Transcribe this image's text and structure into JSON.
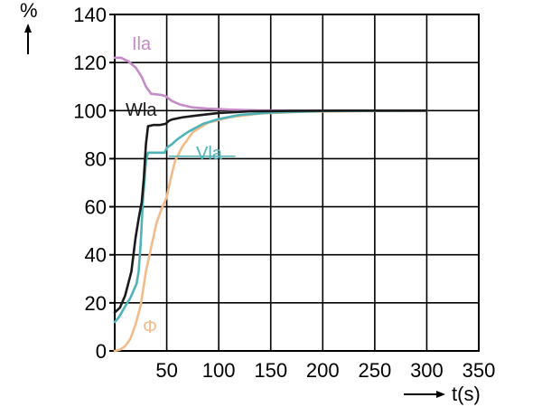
{
  "chart_data": {
    "type": "line",
    "xlabel": "t(s)",
    "ylabel": "%",
    "xlim": [
      0,
      350
    ],
    "ylim": [
      0,
      140
    ],
    "xticks": [
      50,
      100,
      150,
      200,
      250,
      300,
      350
    ],
    "yticks": [
      0,
      20,
      40,
      60,
      80,
      100,
      120,
      140
    ],
    "grid": true,
    "colors": {
      "Ila": "#c58ac7",
      "Wla": "#1a1a1a",
      "Vla": "#4fb3b8",
      "Φ": "#f2bb8a",
      "grid": "#000000"
    },
    "series": [
      {
        "name": "Ila",
        "points": [
          [
            0,
            122
          ],
          [
            6,
            122
          ],
          [
            13,
            120.5
          ],
          [
            20,
            118
          ],
          [
            26,
            114
          ],
          [
            30,
            110
          ],
          [
            35,
            107
          ],
          [
            45,
            106.5
          ],
          [
            49,
            106
          ],
          [
            55,
            104
          ],
          [
            63,
            102.5
          ],
          [
            75,
            101.3
          ],
          [
            90,
            100.8
          ],
          [
            110,
            100.4
          ],
          [
            140,
            100.1
          ],
          [
            180,
            100
          ],
          [
            300,
            100
          ]
        ]
      },
      {
        "name": "Wla",
        "points": [
          [
            0,
            16
          ],
          [
            5,
            18
          ],
          [
            10,
            23
          ],
          [
            13,
            28
          ],
          [
            16,
            33
          ],
          [
            18,
            40
          ],
          [
            20,
            47
          ],
          [
            23,
            55
          ],
          [
            26,
            62
          ],
          [
            28,
            72
          ],
          [
            30,
            86
          ],
          [
            32,
            93.5
          ],
          [
            37,
            94
          ],
          [
            43,
            94
          ],
          [
            49,
            94.5
          ],
          [
            52,
            95.7
          ],
          [
            55,
            96.3
          ],
          [
            65,
            97.2
          ],
          [
            80,
            98
          ],
          [
            100,
            99
          ],
          [
            130,
            99.7
          ],
          [
            170,
            99.9
          ],
          [
            220,
            100
          ],
          [
            300,
            100
          ]
        ]
      },
      {
        "name": "Vla",
        "points": [
          [
            0,
            12
          ],
          [
            4,
            14
          ],
          [
            8,
            17
          ],
          [
            12,
            20
          ],
          [
            15,
            22
          ],
          [
            18,
            25
          ],
          [
            21,
            28
          ],
          [
            23,
            33
          ],
          [
            25,
            45
          ],
          [
            27,
            62
          ],
          [
            30,
            79
          ],
          [
            32,
            82.5
          ],
          [
            40,
            82.5
          ],
          [
            48,
            82.5
          ],
          [
            50,
            84.5
          ],
          [
            55,
            86
          ],
          [
            60,
            88
          ],
          [
            70,
            91
          ],
          [
            85,
            94.5
          ],
          [
            100,
            96.5
          ],
          [
            120,
            98.2
          ],
          [
            150,
            99.2
          ],
          [
            200,
            99.8
          ],
          [
            300,
            100
          ]
        ]
      },
      {
        "name": "Φ",
        "points": [
          [
            0,
            0
          ],
          [
            5,
            0.5
          ],
          [
            10,
            2
          ],
          [
            15,
            5
          ],
          [
            20,
            11
          ],
          [
            25,
            19
          ],
          [
            30,
            33
          ],
          [
            35,
            43
          ],
          [
            40,
            53
          ],
          [
            45,
            59
          ],
          [
            50,
            64
          ],
          [
            54,
            72
          ],
          [
            58,
            79
          ],
          [
            65,
            85
          ],
          [
            75,
            91
          ],
          [
            90,
            95
          ],
          [
            110,
            97.2
          ],
          [
            140,
            98.8
          ],
          [
            180,
            99.5
          ],
          [
            240,
            99.8
          ],
          [
            300,
            100
          ]
        ]
      }
    ],
    "labels": {
      "Ila": "Ila",
      "Wla": "Wla",
      "Vla": "Vla",
      "Φ": "Φ"
    }
  }
}
